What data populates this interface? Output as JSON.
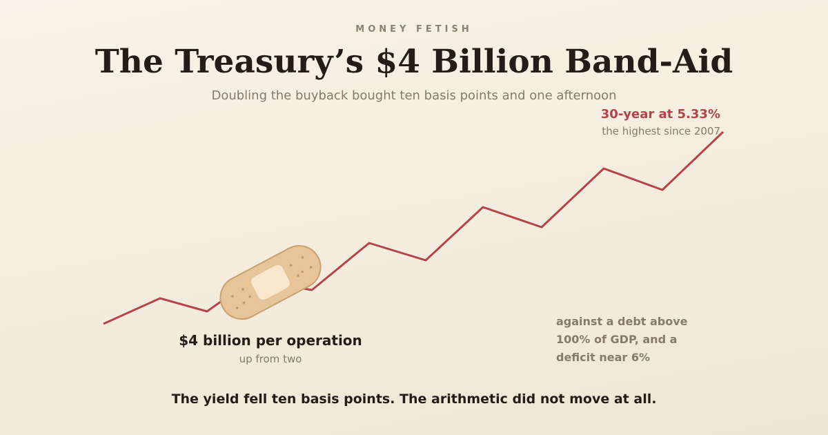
{
  "kicker": "MONEY FETISH",
  "title": "The Treasury’s $4 Billion Band-Aid",
  "subtitle": "Doubling the buyback bought ten basis points and one afternoon",
  "peak": {
    "label": "30-year at 5.33%",
    "note": "the highest since 2007"
  },
  "operation": {
    "label": "$4 billion per operation",
    "note": "up from two"
  },
  "debt_note": "against a debt above 100% of GDP, and a deficit near 6%",
  "footer": "The yield fell ten basis points. The arithmetic did not move at all."
}
